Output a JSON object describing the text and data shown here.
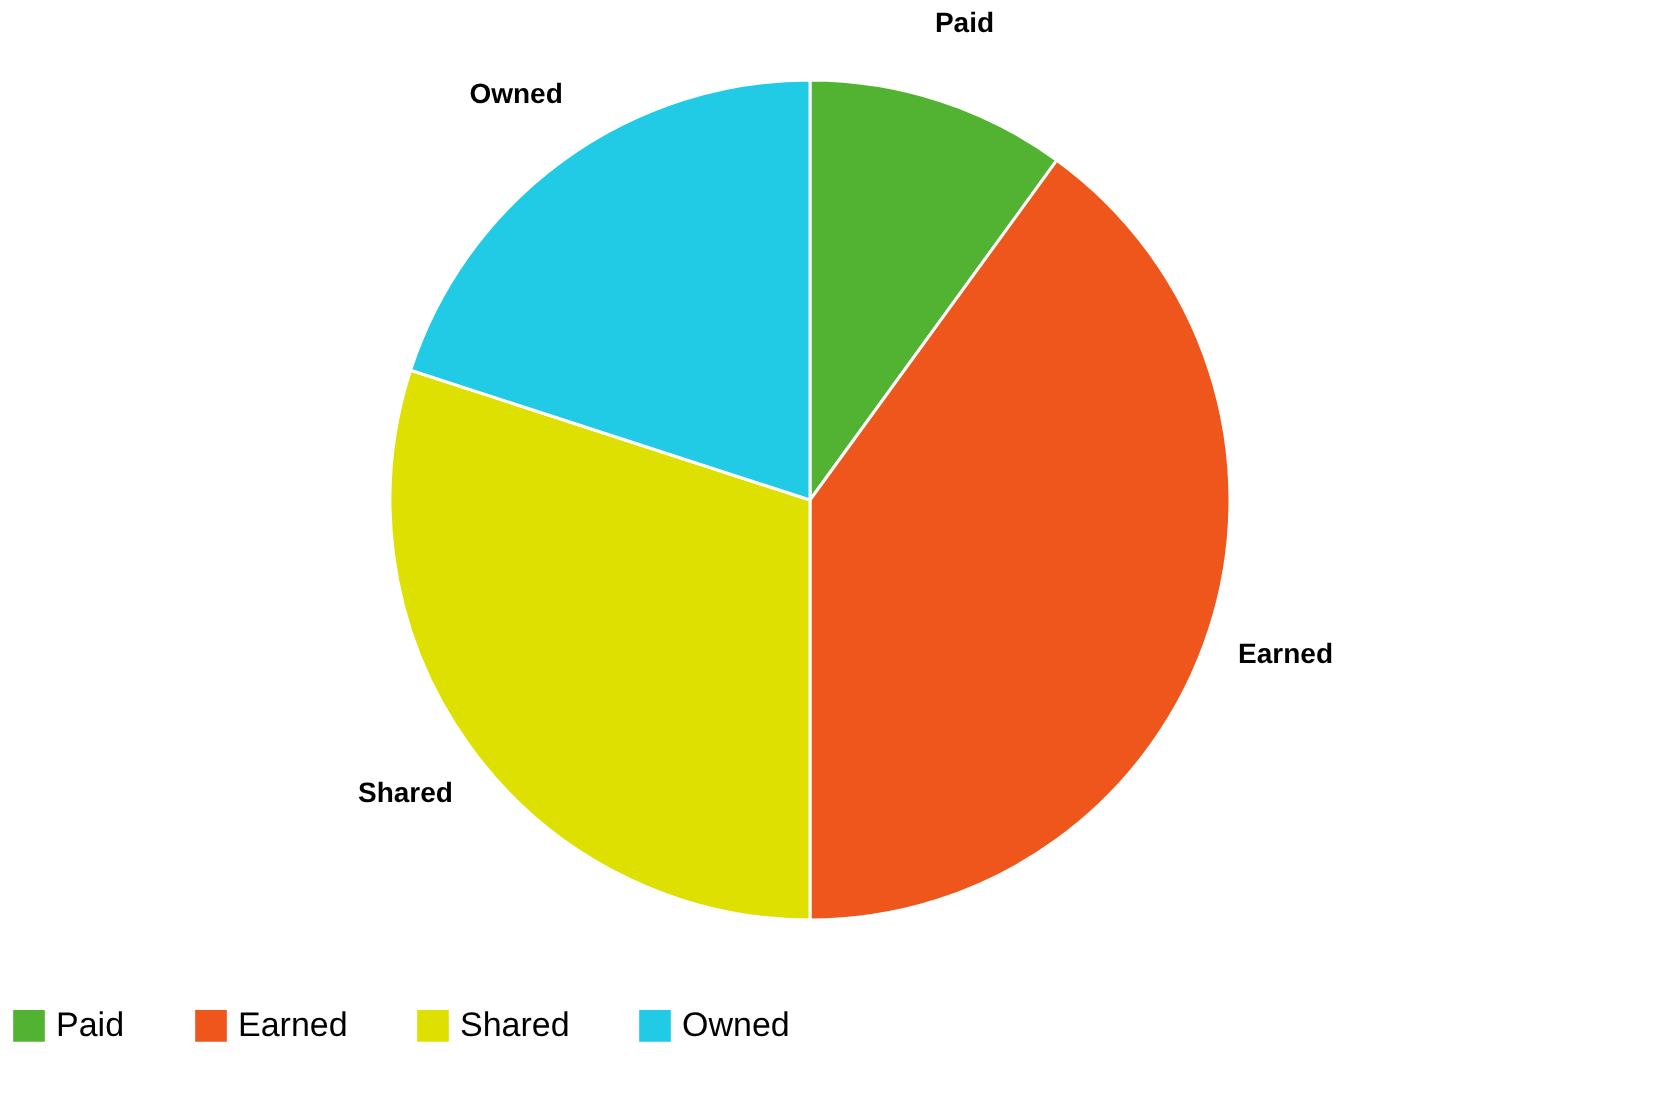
{
  "chart_data": {
    "type": "pie",
    "categories": [
      "Paid",
      "Earned",
      "Shared",
      "Owned"
    ],
    "values": [
      10,
      40,
      30,
      20
    ],
    "colors": [
      "#52b332",
      "#ee561c",
      "#dde000",
      "#22cbe5"
    ],
    "legend": "bottom"
  }
}
